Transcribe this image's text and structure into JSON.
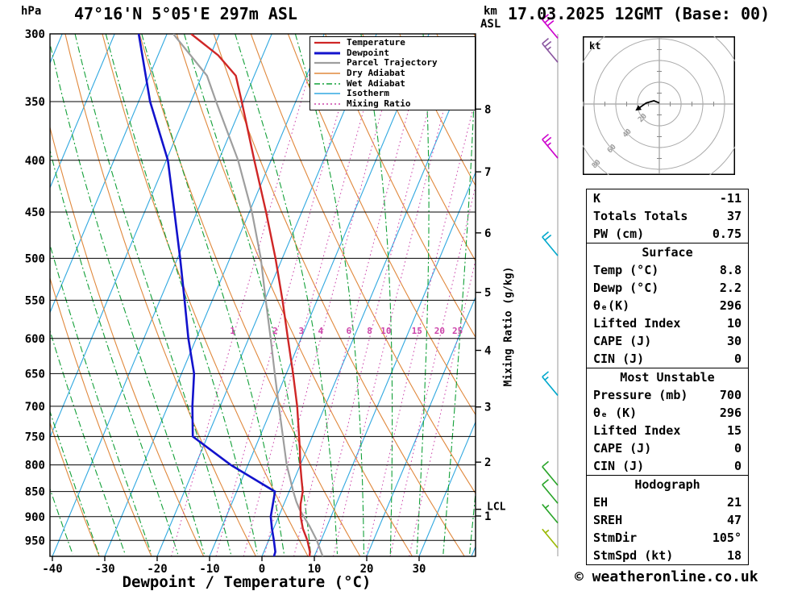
{
  "header": {
    "pressure_unit": "hPa",
    "title": "47°16'N 5°05'E 297m ASL",
    "km_label": "km",
    "asl_label": "ASL",
    "datetime": "17.03.2025 12GMT (Base: 00)"
  },
  "axes": {
    "x_label": "Dewpoint / Temperature (°C)",
    "x_ticks": [
      -40,
      -30,
      -20,
      -10,
      0,
      10,
      20,
      30
    ],
    "pressure_ticks": [
      300,
      350,
      400,
      450,
      500,
      550,
      600,
      650,
      700,
      750,
      800,
      850,
      900,
      950
    ],
    "km_ticks": [
      1,
      2,
      3,
      4,
      5,
      6,
      7,
      8
    ],
    "lcl_label": "LCL",
    "lcl_pressure": 885,
    "mixing_ratio_axis_label": "Mixing Ratio (g/kg)"
  },
  "legend": [
    {
      "label": "Temperature",
      "color": "#cf2626",
      "style": "solid",
      "width": 2.2
    },
    {
      "label": "Dewpoint",
      "color": "#1212cc",
      "style": "solid",
      "width": 3
    },
    {
      "label": "Parcel Trajectory",
      "color": "#9e9e9e",
      "style": "solid",
      "width": 2.2
    },
    {
      "label": "Dry Adiabat",
      "color": "#e0883c",
      "style": "solid",
      "width": 1.6
    },
    {
      "label": "Wet Adiabat",
      "color": "#12a038",
      "style": "dashdot",
      "width": 1.6
    },
    {
      "label": "Isotherm",
      "color": "#30a8e0",
      "style": "solid",
      "width": 1.6
    },
    {
      "label": "Mixing Ratio",
      "color": "#cc44aa",
      "style": "dotted",
      "width": 1.6
    }
  ],
  "chart_data": {
    "type": "skewt-log-p",
    "pressure_range": [
      300,
      985
    ],
    "temp_axis_range": [
      -40,
      38
    ],
    "skew": 0.42,
    "isotherms_c": [
      -120,
      -110,
      -100,
      -90,
      -80,
      -70,
      -60,
      -50,
      -40,
      -30,
      -20,
      -10,
      0,
      10,
      20,
      30,
      40
    ],
    "dry_adiabats_theta_c": [
      -40,
      -30,
      -20,
      -10,
      0,
      10,
      20,
      30,
      40,
      50,
      60,
      70,
      80,
      90,
      100,
      110
    ],
    "wet_adiabats_thetaw_c": [
      -55,
      -50,
      -45,
      -40,
      -35,
      -30,
      -25,
      -20,
      -15,
      -10,
      -5,
      0,
      5,
      10,
      15,
      20,
      25,
      30,
      35,
      40
    ],
    "mixing_ratio_gkg": [
      1,
      2,
      3,
      4,
      6,
      8,
      10,
      15,
      20,
      25
    ],
    "temperature_profile": [
      [
        985,
        9.1
      ],
      [
        975,
        8.8
      ],
      [
        950,
        7.4
      ],
      [
        925,
        5.6
      ],
      [
        900,
        4.2
      ],
      [
        875,
        3.2
      ],
      [
        850,
        2.6
      ],
      [
        825,
        1.3
      ],
      [
        800,
        0.0
      ],
      [
        775,
        -1.2
      ],
      [
        750,
        -2.5
      ],
      [
        700,
        -5.3
      ],
      [
        650,
        -8.7
      ],
      [
        600,
        -12.5
      ],
      [
        550,
        -16.6
      ],
      [
        500,
        -21.3
      ],
      [
        450,
        -26.8
      ],
      [
        400,
        -33.2
      ],
      [
        350,
        -40.3
      ],
      [
        330,
        -43.5
      ],
      [
        315,
        -48.5
      ],
      [
        300,
        -55.4
      ]
    ],
    "dewpoint_profile": [
      [
        985,
        2.3
      ],
      [
        975,
        2.2
      ],
      [
        950,
        1.0
      ],
      [
        925,
        -0.3
      ],
      [
        900,
        -1.5
      ],
      [
        875,
        -2.1
      ],
      [
        850,
        -2.7
      ],
      [
        800,
        -13.3
      ],
      [
        750,
        -22.8
      ],
      [
        700,
        -25.3
      ],
      [
        650,
        -27.6
      ],
      [
        600,
        -31.5
      ],
      [
        550,
        -35.3
      ],
      [
        500,
        -39.5
      ],
      [
        450,
        -44.3
      ],
      [
        400,
        -49.7
      ],
      [
        350,
        -57.8
      ],
      [
        300,
        -65.4
      ]
    ],
    "parcel_profile": [
      [
        985,
        11.6
      ],
      [
        950,
        9.2
      ],
      [
        920,
        6.7
      ],
      [
        900,
        4.8
      ],
      [
        885,
        3.4
      ],
      [
        870,
        2.2
      ],
      [
        850,
        0.8
      ],
      [
        800,
        -2.6
      ],
      [
        750,
        -5.6
      ],
      [
        700,
        -8.8
      ],
      [
        650,
        -12.2
      ],
      [
        600,
        -15.8
      ],
      [
        550,
        -19.8
      ],
      [
        500,
        -24.1
      ],
      [
        450,
        -29.5
      ],
      [
        400,
        -36.3
      ],
      [
        350,
        -45.2
      ],
      [
        330,
        -49.0
      ],
      [
        300,
        -58.8
      ]
    ],
    "colors": {
      "temperature": "#cf2626",
      "dewpoint": "#1212cc",
      "parcel": "#9e9e9e",
      "dry_adiabat": "#e0883c",
      "wet_adiabat": "#12a038",
      "isotherm": "#30a8e0",
      "mixing_ratio": "#cc44aa",
      "grid": "#000000"
    }
  },
  "wind_barbs": [
    {
      "pressure": 303,
      "speed_kt": 30,
      "color": "#cc00cc"
    },
    {
      "pressure": 320,
      "speed_kt": 25,
      "color": "#8a55a0"
    },
    {
      "pressure": 398,
      "speed_kt": 25,
      "color": "#cc00cc"
    },
    {
      "pressure": 497,
      "speed_kt": 20,
      "color": "#00a8cc"
    },
    {
      "pressure": 683,
      "speed_kt": 15,
      "color": "#00a8cc"
    },
    {
      "pressure": 838,
      "speed_kt": 10,
      "color": "#28a428"
    },
    {
      "pressure": 873,
      "speed_kt": 10,
      "color": "#28a428"
    },
    {
      "pressure": 913,
      "speed_kt": 5,
      "color": "#28a428"
    },
    {
      "pressure": 966,
      "speed_kt": 5,
      "color": "#9ab800"
    }
  ],
  "hodograph": {
    "unit_label": "kt",
    "ring_step_kt": 20,
    "ring_labels": [
      20,
      40,
      60,
      80
    ],
    "trace_kt": [
      [
        0,
        1
      ],
      [
        -5,
        3
      ],
      [
        -12,
        1
      ],
      [
        -19,
        -4
      ]
    ]
  },
  "panel": {
    "sections": [
      {
        "header": null,
        "rows": [
          [
            "K",
            "-11"
          ],
          [
            "Totals Totals",
            "37"
          ],
          [
            "PW (cm)",
            "0.75"
          ]
        ]
      },
      {
        "header": "Surface",
        "rows": [
          [
            "Temp (°C)",
            "8.8"
          ],
          [
            "Dewp (°C)",
            "2.2"
          ],
          [
            "θₑ(K)",
            "296"
          ],
          [
            "Lifted Index",
            "10"
          ],
          [
            "CAPE (J)",
            "30"
          ],
          [
            "CIN (J)",
            "0"
          ]
        ]
      },
      {
        "header": "Most Unstable",
        "rows": [
          [
            "Pressure (mb)",
            "700"
          ],
          [
            "θₑ (K)",
            "296"
          ],
          [
            "Lifted Index",
            "15"
          ],
          [
            "CAPE (J)",
            "0"
          ],
          [
            "CIN (J)",
            "0"
          ]
        ]
      },
      {
        "header": "Hodograph",
        "rows": [
          [
            "EH",
            "21"
          ],
          [
            "SREH",
            "47"
          ],
          [
            "StmDir",
            "105°"
          ],
          [
            "StmSpd (kt)",
            "18"
          ]
        ]
      }
    ]
  },
  "footer": {
    "copyright": "© weatheronline.co.uk"
  }
}
